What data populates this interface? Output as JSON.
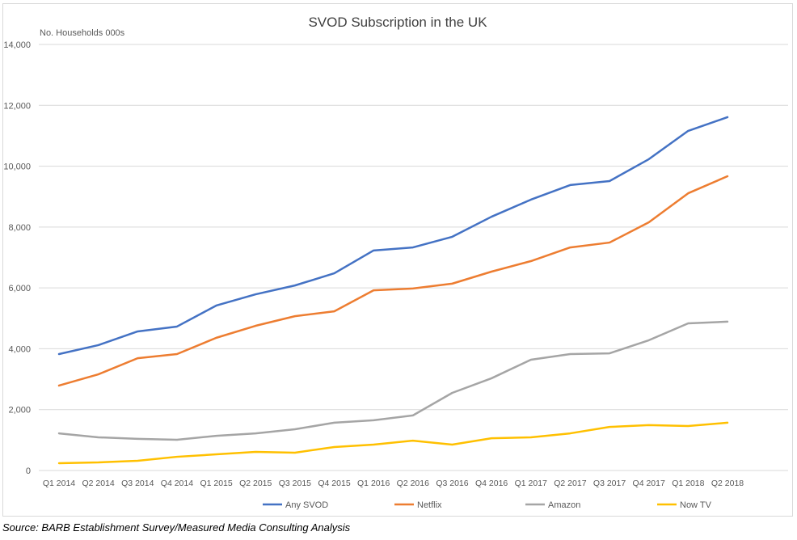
{
  "chart_data": {
    "type": "line",
    "title": "SVOD Subscription in the UK",
    "ylabel": "No. Households 000s",
    "xlabel": "",
    "ylim": [
      0,
      14000
    ],
    "yticks": [
      0,
      2000,
      4000,
      6000,
      8000,
      10000,
      12000,
      14000
    ],
    "ytick_labels": [
      "0",
      "2,000",
      "4,000",
      "6,000",
      "8,000",
      "10,000",
      "12,000",
      "14,000"
    ],
    "grid": true,
    "legend_position": "bottom",
    "categories": [
      "Q1 2014",
      "Q2 2014",
      "Q3 2014",
      "Q4 2014",
      "Q1 2015",
      "Q2 2015",
      "Q3 2015",
      "Q4 2015",
      "Q1 2016",
      "Q2 2016",
      "Q3 2016",
      "Q4 2016",
      "Q1 2017",
      "Q2 2017",
      "Q3 2017",
      "Q4 2017",
      "Q1 2018",
      "Q2 2018"
    ],
    "series": [
      {
        "name": "Any SVOD",
        "color": "#4472c4",
        "values": [
          3825,
          4120,
          4570,
          4730,
          5420,
          5790,
          6080,
          6480,
          7230,
          7330,
          7680,
          8340,
          8900,
          9380,
          9510,
          10230,
          11160,
          11610
        ]
      },
      {
        "name": "Netflix",
        "color": "#ed7d31",
        "values": [
          2790,
          3160,
          3690,
          3825,
          4360,
          4755,
          5070,
          5230,
          5920,
          5980,
          6140,
          6535,
          6880,
          7330,
          7490,
          8155,
          9110,
          9670
        ]
      },
      {
        "name": "Amazon",
        "color": "#a5a5a5",
        "values": [
          1220,
          1090,
          1040,
          1010,
          1140,
          1220,
          1355,
          1570,
          1650,
          1810,
          2550,
          3030,
          3640,
          3825,
          3850,
          4280,
          4835,
          4890
        ]
      },
      {
        "name": "Now TV",
        "color": "#ffc000",
        "values": [
          240,
          265,
          320,
          450,
          530,
          610,
          585,
          770,
          850,
          980,
          850,
          1060,
          1090,
          1220,
          1430,
          1490,
          1460,
          1570
        ]
      }
    ]
  },
  "source": "Source: BARB Establishment Survey/Measured Media Consulting Analysis"
}
